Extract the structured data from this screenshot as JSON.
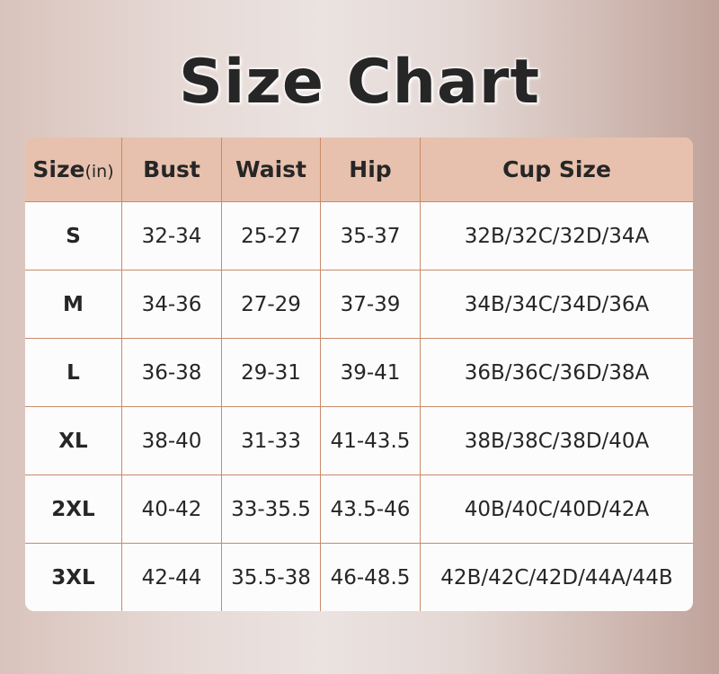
{
  "title": "Size Chart",
  "colors": {
    "header_bg": "#e7c1ad",
    "grid_line": "#c98a6a",
    "text": "#262626"
  },
  "table": {
    "headers": {
      "size": "Size",
      "size_unit": "(in)",
      "bust": "Bust",
      "waist": "Waist",
      "hip": "Hip",
      "cup": "Cup Size"
    },
    "rows": [
      {
        "size": "S",
        "bust": "32-34",
        "waist": "25-27",
        "hip": "35-37",
        "cup": "32B/32C/32D/34A"
      },
      {
        "size": "M",
        "bust": "34-36",
        "waist": "27-29",
        "hip": "37-39",
        "cup": "34B/34C/34D/36A"
      },
      {
        "size": "L",
        "bust": "36-38",
        "waist": "29-31",
        "hip": "39-41",
        "cup": "36B/36C/36D/38A"
      },
      {
        "size": "XL",
        "bust": "38-40",
        "waist": "31-33",
        "hip": "41-43.5",
        "cup": "38B/38C/38D/40A"
      },
      {
        "size": "2XL",
        "bust": "40-42",
        "waist": "33-35.5",
        "hip": "43.5-46",
        "cup": "40B/40C/40D/42A"
      },
      {
        "size": "3XL",
        "bust": "42-44",
        "waist": "35.5-38",
        "hip": "46-48.5",
        "cup": "42B/42C/42D/44A/44B"
      }
    ]
  }
}
